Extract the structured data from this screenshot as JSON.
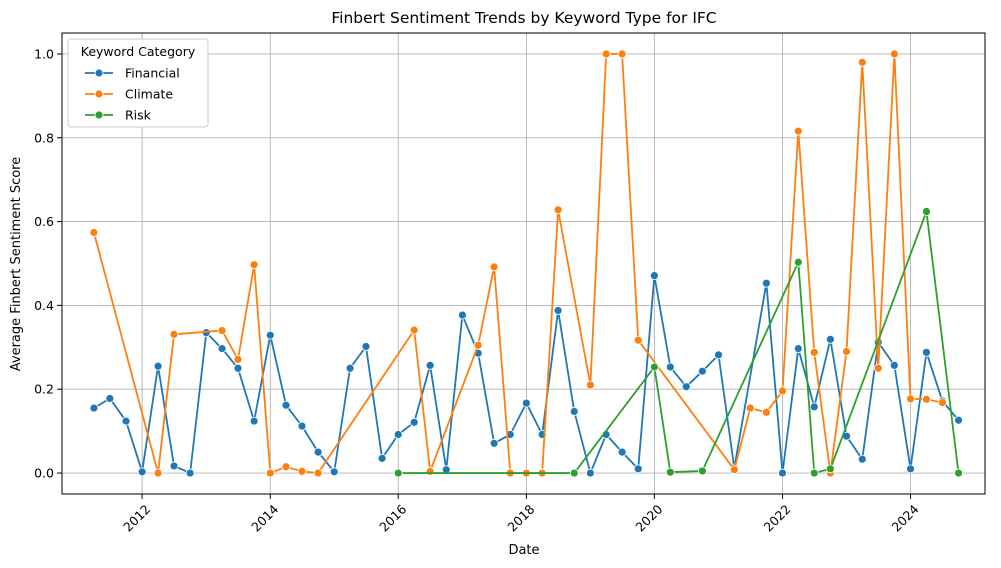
{
  "chart_data": {
    "type": "line",
    "title": "Finbert Sentiment Trends by Keyword Type for IFC",
    "xlabel": "Date",
    "ylabel": "Average Finbert Sentiment Score",
    "xlim": [
      "2010-10-01",
      "2025-03-01"
    ],
    "ylim": [
      -0.05,
      1.05
    ],
    "x_ticks": [
      "2012-01-01",
      "2014-01-01",
      "2016-01-01",
      "2018-01-01",
      "2020-01-01",
      "2022-01-01",
      "2024-01-01"
    ],
    "x_tick_labels": [
      "2012",
      "2014",
      "2016",
      "2018",
      "2020",
      "2022",
      "2024"
    ],
    "y_ticks": [
      0.0,
      0.2,
      0.4,
      0.6,
      0.8,
      1.0
    ],
    "y_tick_labels": [
      "0.0",
      "0.2",
      "0.4",
      "0.6",
      "0.8",
      "1.0"
    ],
    "grid": true,
    "legend": {
      "title": "Keyword Category",
      "placement": "top-left"
    },
    "series": [
      {
        "name": "Financial",
        "color": "#1f77b4",
        "points": [
          [
            "2011-04-01",
            0.155
          ],
          [
            "2011-07-01",
            0.178
          ],
          [
            "2011-10-01",
            0.124
          ],
          [
            "2012-01-01",
            0.003
          ],
          [
            "2012-04-01",
            0.255
          ],
          [
            "2012-07-01",
            0.017
          ],
          [
            "2012-10-01",
            0.0
          ],
          [
            "2013-01-01",
            0.335
          ],
          [
            "2013-04-01",
            0.297
          ],
          [
            "2013-07-01",
            0.25
          ],
          [
            "2013-10-01",
            0.124
          ],
          [
            "2014-01-01",
            0.329
          ],
          [
            "2014-04-01",
            0.162
          ],
          [
            "2014-07-01",
            0.112
          ],
          [
            "2014-10-01",
            0.05
          ],
          [
            "2015-01-01",
            0.003
          ],
          [
            "2015-04-01",
            0.25
          ],
          [
            "2015-07-01",
            0.302
          ],
          [
            "2015-10-01",
            0.035
          ],
          [
            "2016-01-01",
            0.092
          ],
          [
            "2016-04-01",
            0.121
          ],
          [
            "2016-07-01",
            0.257
          ],
          [
            "2016-10-01",
            0.008
          ],
          [
            "2017-01-01",
            0.377
          ],
          [
            "2017-04-01",
            0.286
          ],
          [
            "2017-07-01",
            0.071
          ],
          [
            "2017-10-01",
            0.092
          ],
          [
            "2018-01-01",
            0.167
          ],
          [
            "2018-04-01",
            0.092
          ],
          [
            "2018-07-01",
            0.388
          ],
          [
            "2018-10-01",
            0.147
          ],
          [
            "2019-01-01",
            0.0
          ],
          [
            "2019-04-01",
            0.092
          ],
          [
            "2019-07-01",
            0.05
          ],
          [
            "2019-10-01",
            0.01
          ],
          [
            "2020-01-01",
            0.471
          ],
          [
            "2020-04-01",
            0.253
          ],
          [
            "2020-07-01",
            0.206
          ],
          [
            "2020-10-01",
            0.243
          ],
          [
            "2021-01-01",
            0.282
          ],
          [
            "2021-04-01",
            0.012
          ],
          [
            "2021-10-01",
            0.453
          ],
          [
            "2022-01-01",
            0.0
          ],
          [
            "2022-04-01",
            0.297
          ],
          [
            "2022-07-01",
            0.158
          ],
          [
            "2022-10-01",
            0.319
          ],
          [
            "2023-01-01",
            0.088
          ],
          [
            "2023-04-01",
            0.033
          ],
          [
            "2023-07-01",
            0.312
          ],
          [
            "2023-10-01",
            0.257
          ],
          [
            "2024-01-01",
            0.01
          ],
          [
            "2024-04-01",
            0.288
          ],
          [
            "2024-07-01",
            0.172
          ],
          [
            "2024-10-01",
            0.126
          ]
        ]
      },
      {
        "name": "Climate",
        "color": "#ff7f0e",
        "points": [
          [
            "2011-04-01",
            0.574
          ],
          [
            "2012-04-01",
            0.0
          ],
          [
            "2012-07-01",
            0.331
          ],
          [
            "2013-04-01",
            0.34
          ],
          [
            "2013-07-01",
            0.271
          ],
          [
            "2013-10-01",
            0.497
          ],
          [
            "2014-01-01",
            0.0
          ],
          [
            "2014-04-01",
            0.015
          ],
          [
            "2014-07-01",
            0.004
          ],
          [
            "2014-10-01",
            0.0
          ],
          [
            "2016-04-01",
            0.341
          ],
          [
            "2016-07-01",
            0.004
          ],
          [
            "2017-04-01",
            0.305
          ],
          [
            "2017-07-01",
            0.492
          ],
          [
            "2017-10-01",
            0.0
          ],
          [
            "2018-01-01",
            0.0
          ],
          [
            "2018-04-01",
            0.0
          ],
          [
            "2018-07-01",
            0.628
          ],
          [
            "2019-01-01",
            0.21
          ],
          [
            "2019-04-01",
            1.0
          ],
          [
            "2019-07-01",
            1.0
          ],
          [
            "2019-10-01",
            0.317
          ],
          [
            "2021-04-01",
            0.008
          ],
          [
            "2021-07-01",
            0.155
          ],
          [
            "2021-10-01",
            0.145
          ],
          [
            "2022-01-01",
            0.196
          ],
          [
            "2022-04-01",
            0.816
          ],
          [
            "2022-07-01",
            0.288
          ],
          [
            "2022-10-01",
            0.0
          ],
          [
            "2023-01-01",
            0.29
          ],
          [
            "2023-04-01",
            0.98
          ],
          [
            "2023-07-01",
            0.25
          ],
          [
            "2023-10-01",
            1.0
          ],
          [
            "2024-01-01",
            0.177
          ],
          [
            "2024-04-01",
            0.176
          ],
          [
            "2024-07-01",
            0.168
          ]
        ]
      },
      {
        "name": "Risk",
        "color": "#2ca02c",
        "points": [
          [
            "2016-01-01",
            0.0
          ],
          [
            "2018-10-01",
            0.0
          ],
          [
            "2020-01-01",
            0.253
          ],
          [
            "2020-04-01",
            0.002
          ],
          [
            "2020-10-01",
            0.005
          ],
          [
            "2022-04-01",
            0.503
          ],
          [
            "2022-07-01",
            0.0
          ],
          [
            "2022-10-01",
            0.01
          ],
          [
            "2024-04-01",
            0.624
          ],
          [
            "2024-10-01",
            0.0
          ]
        ]
      }
    ]
  }
}
